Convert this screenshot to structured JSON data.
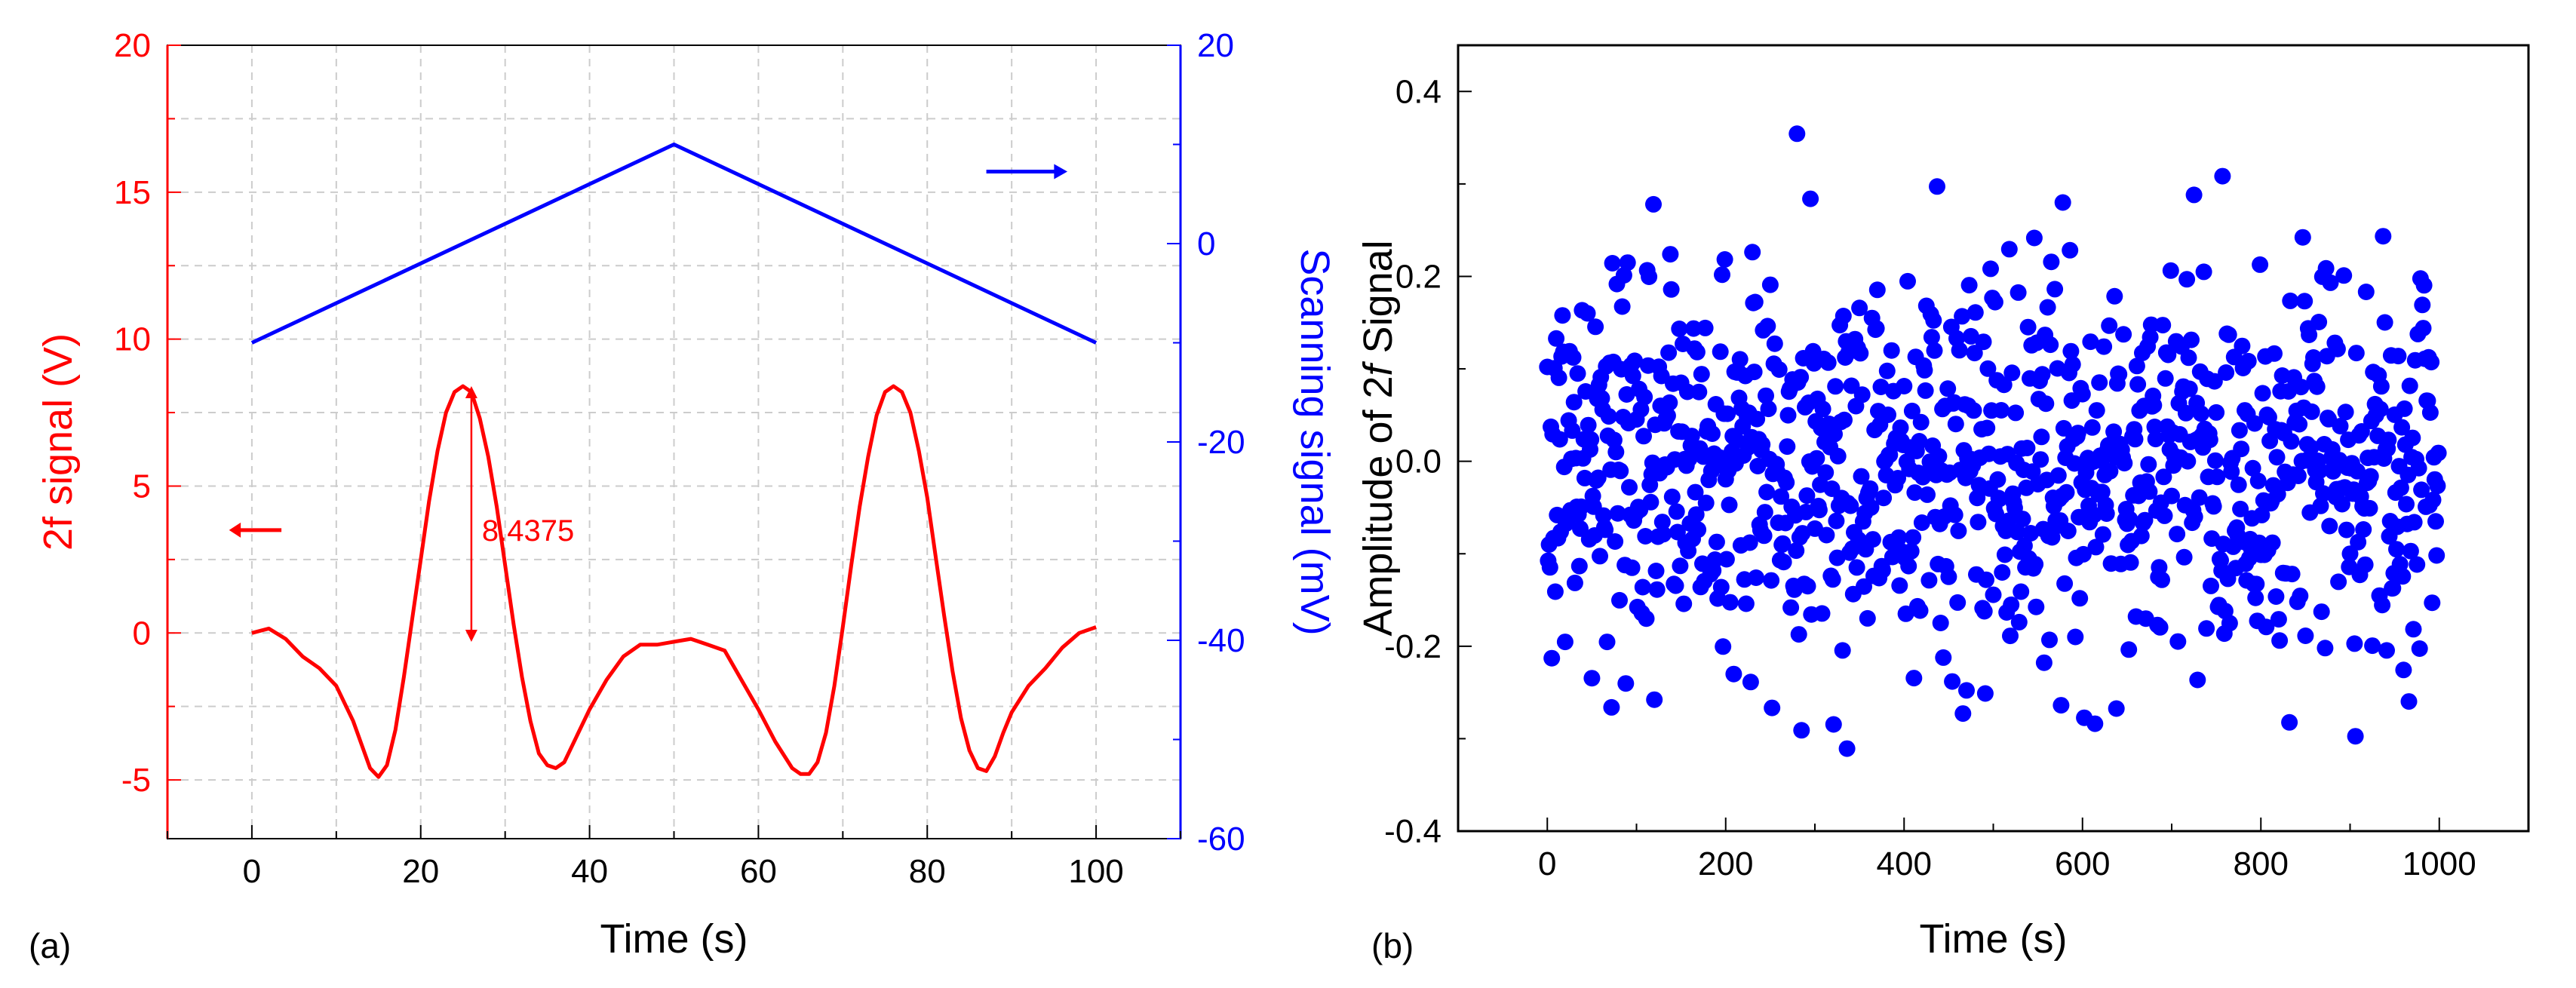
{
  "chart_data": [
    {
      "panel_label": "(a)",
      "type": "line",
      "xlabel": "Time (s)",
      "ylabel_left": "2f signal (V)",
      "ylabel_right": "Scanning signal (mV)",
      "xlim": [
        -10,
        110
      ],
      "ylim_left": [
        -7,
        20
      ],
      "ylim_right": [
        -60,
        20
      ],
      "x_ticks": [
        0,
        20,
        40,
        60,
        80,
        100
      ],
      "y_ticks_left": [
        -5,
        0,
        5,
        10,
        15,
        20
      ],
      "y_ticks_right": [
        -60,
        -40,
        -20,
        0,
        20
      ],
      "grid": true,
      "colors": {
        "left": "#ff0000",
        "right": "#0000ff"
      },
      "series": [
        {
          "name": "2f signal",
          "axis": "left",
          "color": "#ff0000",
          "x": [
            0,
            2,
            4,
            6,
            8,
            10,
            12,
            13,
            14,
            15,
            16,
            17,
            18,
            19,
            20,
            21,
            22,
            23,
            24,
            25,
            26,
            27,
            28,
            29,
            30,
            31,
            32,
            33,
            34,
            35,
            36,
            37,
            38,
            40,
            42,
            44,
            46,
            48,
            50,
            52,
            54,
            56,
            58,
            60,
            62,
            64,
            65,
            66,
            67,
            68,
            69,
            70,
            71,
            72,
            73,
            74,
            75,
            76,
            77,
            78,
            79,
            80,
            81,
            82,
            83,
            84,
            85,
            86,
            87,
            88,
            89,
            90,
            92,
            94,
            96,
            98,
            100
          ],
          "values": [
            0.0,
            0.15,
            -0.2,
            -0.8,
            -1.2,
            -1.8,
            -3.0,
            -3.8,
            -4.6,
            -4.9,
            -4.5,
            -3.3,
            -1.5,
            0.5,
            2.5,
            4.5,
            6.2,
            7.5,
            8.2,
            8.4,
            8.2,
            7.3,
            6.0,
            4.3,
            2.3,
            0.3,
            -1.5,
            -3.0,
            -4.1,
            -4.5,
            -4.6,
            -4.4,
            -3.8,
            -2.6,
            -1.6,
            -0.8,
            -0.4,
            -0.4,
            -0.3,
            -0.2,
            -0.4,
            -0.6,
            -1.6,
            -2.6,
            -3.7,
            -4.6,
            -4.8,
            -4.8,
            -4.4,
            -3.4,
            -1.8,
            0.2,
            2.3,
            4.3,
            6.0,
            7.4,
            8.2,
            8.4,
            8.2,
            7.5,
            6.2,
            4.6,
            2.6,
            0.6,
            -1.3,
            -2.9,
            -4.0,
            -4.6,
            -4.7,
            -4.2,
            -3.4,
            -2.7,
            -1.8,
            -1.2,
            -0.5,
            0.0,
            0.2
          ]
        },
        {
          "name": "Scanning signal",
          "axis": "right",
          "color": "#0000ff",
          "x": [
            0,
            50,
            100
          ],
          "values": [
            -10,
            10,
            -10
          ]
        }
      ],
      "annotations": [
        {
          "text": "8.4375",
          "at_x": 26,
          "from_y": -0.3,
          "to_y": 8.4,
          "color": "#ff0000",
          "type": "double-arrow"
        },
        {
          "type": "arrow",
          "direction": "left",
          "color": "#ff0000",
          "meaning": "left axis"
        },
        {
          "type": "arrow",
          "direction": "right",
          "color": "#0000ff",
          "meaning": "right axis"
        }
      ]
    },
    {
      "panel_label": "(b)",
      "type": "scatter",
      "xlabel": "Time (s)",
      "ylabel_prefix": "Amplitude of 2",
      "ylabel_italic": "f",
      "ylabel_suffix": " Signal",
      "xlim": [
        -100,
        1100
      ],
      "ylim": [
        -0.4,
        0.45
      ],
      "x_ticks": [
        0,
        200,
        400,
        600,
        800,
        1000
      ],
      "y_ticks": [
        -0.4,
        -0.2,
        0.0,
        0.2,
        0.4
      ],
      "y_tick_labels": [
        "-0.4",
        "-0.2",
        "0.0",
        "0.2",
        "0.4"
      ],
      "grid": false,
      "color": "#0000ff",
      "series": [
        {
          "name": "2f amplitude",
          "n_points": 1000,
          "x_start": 0,
          "x_step": 1,
          "mean": 0.0,
          "std": 0.11,
          "range": [
            -0.32,
            0.37
          ]
        }
      ]
    }
  ]
}
